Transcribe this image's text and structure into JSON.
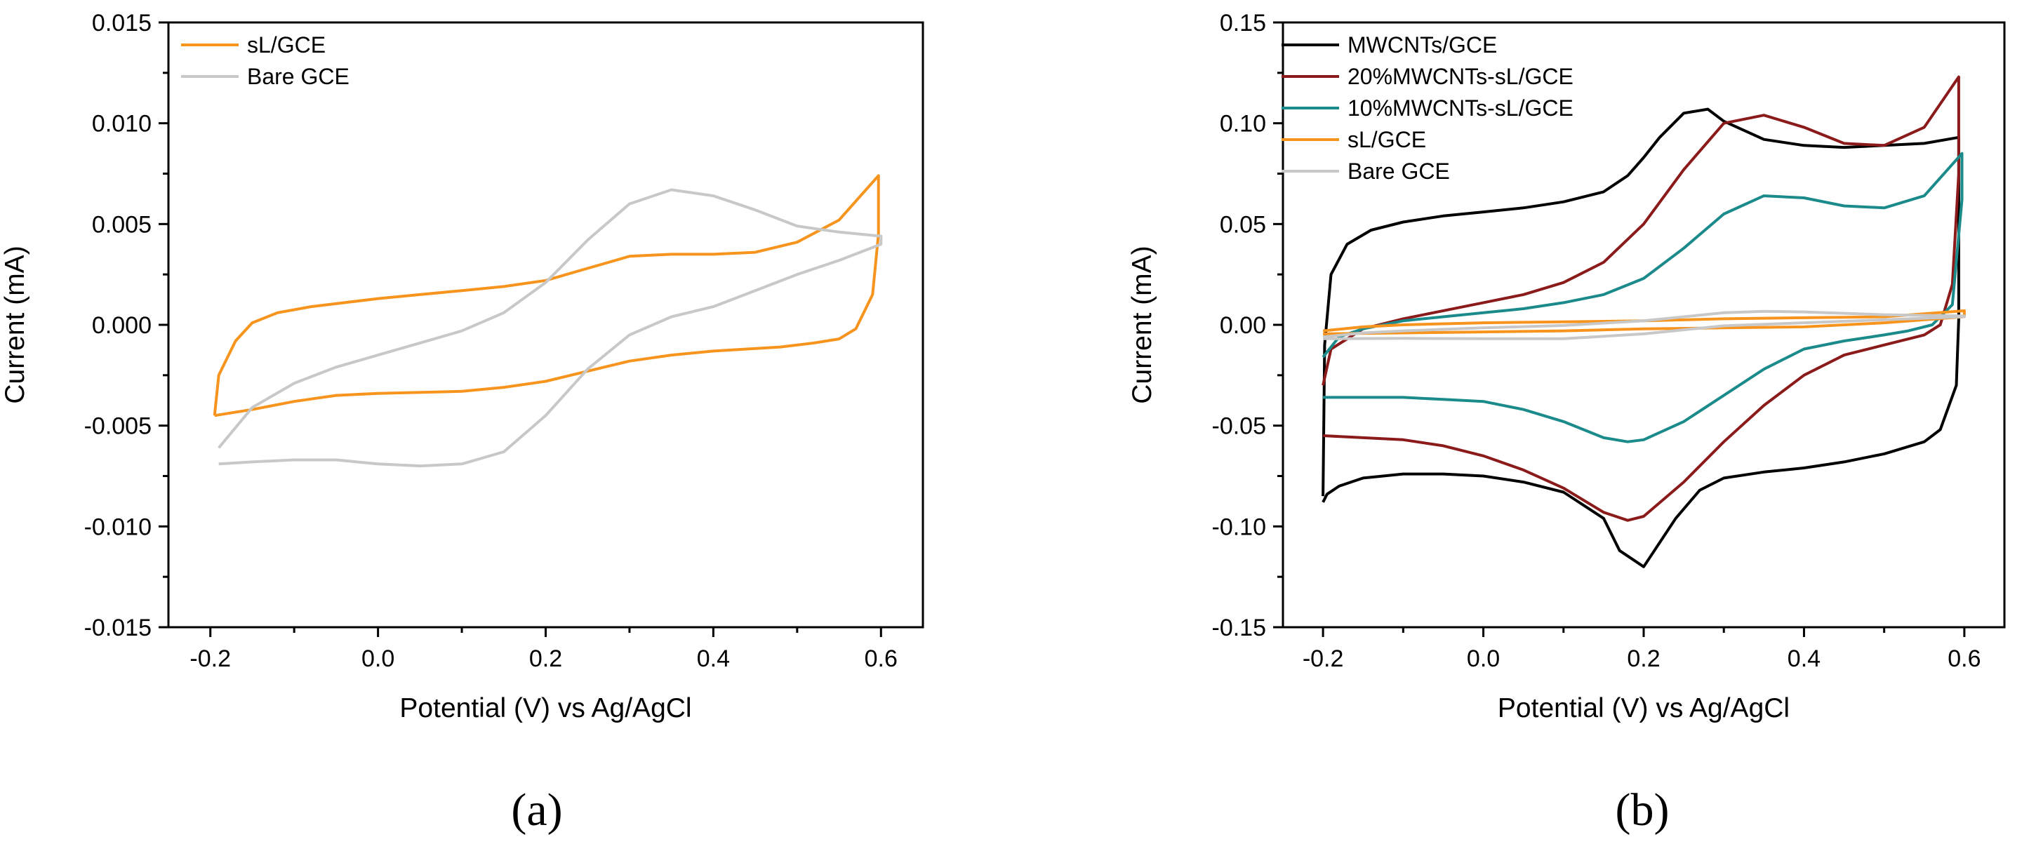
{
  "figure": {
    "panel_labels": [
      "(a)",
      "(b)"
    ]
  },
  "chart_data": [
    {
      "type": "line",
      "panel": "(a)",
      "title": "",
      "xlabel": "Potential (V) vs Ag/AgCl",
      "ylabel": "Current (mA)",
      "xlim": [
        -0.25,
        0.65
      ],
      "ylim": [
        -0.015,
        0.015
      ],
      "xticks": [
        -0.2,
        0.0,
        0.2,
        0.4,
        0.6
      ],
      "xtick_labels": [
        "-0.2",
        "0.0",
        "0.2",
        "0.4",
        "0.6"
      ],
      "yticks": [
        -0.015,
        -0.01,
        -0.005,
        0.0,
        0.005,
        0.01,
        0.015
      ],
      "ytick_labels": [
        "-0.015",
        "-0.010",
        "-0.005",
        "0.000",
        "0.005",
        "0.010",
        "0.015"
      ],
      "legend_position": "top-left",
      "series": [
        {
          "name": "sL/GCE",
          "color": "#f7941d",
          "x": [
            -0.195,
            -0.19,
            -0.17,
            -0.15,
            -0.12,
            -0.08,
            -0.04,
            0.0,
            0.05,
            0.1,
            0.15,
            0.2,
            0.25,
            0.3,
            0.35,
            0.4,
            0.45,
            0.5,
            0.55,
            0.597,
            0.597,
            0.59,
            0.57,
            0.55,
            0.52,
            0.48,
            0.4,
            0.35,
            0.3,
            0.25,
            0.2,
            0.15,
            0.1,
            0.0,
            -0.05,
            -0.1,
            -0.15,
            -0.195
          ],
          "y": [
            -0.0045,
            -0.0025,
            -0.0008,
            0.0001,
            0.0006,
            0.0009,
            0.0011,
            0.0013,
            0.0015,
            0.0017,
            0.0019,
            0.0022,
            0.0028,
            0.0034,
            0.0035,
            0.0035,
            0.0036,
            0.0041,
            0.0052,
            0.0074,
            0.0045,
            0.0015,
            -0.0002,
            -0.0007,
            -0.0009,
            -0.0011,
            -0.0013,
            -0.0015,
            -0.0018,
            -0.0023,
            -0.0028,
            -0.0031,
            -0.0033,
            -0.0034,
            -0.0035,
            -0.0038,
            -0.0042,
            -0.0045
          ]
        },
        {
          "name": "Bare GCE",
          "color": "#c8c8c8",
          "x": [
            -0.19,
            -0.15,
            -0.1,
            -0.05,
            0.0,
            0.05,
            0.1,
            0.15,
            0.2,
            0.25,
            0.3,
            0.35,
            0.4,
            0.45,
            0.5,
            0.55,
            0.6,
            0.6,
            0.55,
            0.5,
            0.45,
            0.4,
            0.35,
            0.3,
            0.25,
            0.2,
            0.15,
            0.1,
            0.05,
            0.0,
            -0.05,
            -0.1,
            -0.15,
            -0.19
          ],
          "y": [
            -0.0061,
            -0.0041,
            -0.0029,
            -0.0021,
            -0.0015,
            -0.0009,
            -0.0003,
            0.0006,
            0.0021,
            0.0042,
            0.006,
            0.0067,
            0.0064,
            0.0057,
            0.0049,
            0.0046,
            0.0044,
            0.004,
            0.0032,
            0.0025,
            0.0017,
            0.0009,
            0.0004,
            -0.0005,
            -0.0022,
            -0.0045,
            -0.0063,
            -0.0069,
            -0.007,
            -0.0069,
            -0.0067,
            -0.0067,
            -0.0068,
            -0.0069
          ]
        }
      ]
    },
    {
      "type": "line",
      "panel": "(b)",
      "title": "",
      "xlabel": "Potential (V) vs Ag/AgCl",
      "ylabel": "Current (mA)",
      "xlim": [
        -0.25,
        0.65
      ],
      "ylim": [
        -0.15,
        0.15
      ],
      "xticks": [
        -0.2,
        0.0,
        0.2,
        0.4,
        0.6
      ],
      "xtick_labels": [
        "-0.2",
        "0.0",
        "0.2",
        "0.4",
        "0.6"
      ],
      "yticks": [
        -0.15,
        -0.1,
        -0.05,
        0.0,
        0.05,
        0.1,
        0.15
      ],
      "ytick_labels": [
        "-0.15",
        "-0.10",
        "-0.05",
        "0.00",
        "0.05",
        "0.10",
        "0.15"
      ],
      "legend_position": "top-left",
      "series": [
        {
          "name": "MWCNTs/GCE",
          "color": "#000000",
          "x": [
            -0.2,
            -0.198,
            -0.19,
            -0.17,
            -0.14,
            -0.1,
            -0.05,
            0.0,
            0.05,
            0.1,
            0.15,
            0.18,
            0.2,
            0.22,
            0.25,
            0.28,
            0.3,
            0.35,
            0.4,
            0.45,
            0.5,
            0.55,
            0.593,
            0.593,
            0.59,
            0.57,
            0.55,
            0.5,
            0.45,
            0.4,
            0.35,
            0.3,
            0.27,
            0.24,
            0.2,
            0.17,
            0.15,
            0.1,
            0.05,
            0.0,
            -0.05,
            -0.1,
            -0.15,
            -0.18,
            -0.195,
            -0.2
          ],
          "y": [
            -0.085,
            -0.01,
            0.025,
            0.04,
            0.047,
            0.051,
            0.054,
            0.056,
            0.058,
            0.061,
            0.066,
            0.074,
            0.083,
            0.093,
            0.105,
            0.107,
            0.101,
            0.092,
            0.089,
            0.088,
            0.089,
            0.09,
            0.093,
            0.003,
            -0.03,
            -0.052,
            -0.058,
            -0.064,
            -0.068,
            -0.071,
            -0.073,
            -0.076,
            -0.082,
            -0.096,
            -0.12,
            -0.112,
            -0.096,
            -0.083,
            -0.078,
            -0.075,
            -0.074,
            -0.074,
            -0.076,
            -0.08,
            -0.084,
            -0.088
          ]
        },
        {
          "name": "20%MWCNTs-sL/GCE",
          "color": "#8b1a1a",
          "x": [
            -0.2,
            -0.19,
            -0.15,
            -0.1,
            -0.05,
            0.0,
            0.05,
            0.1,
            0.15,
            0.2,
            0.25,
            0.3,
            0.35,
            0.4,
            0.45,
            0.5,
            0.55,
            0.593,
            0.593,
            0.585,
            0.57,
            0.55,
            0.5,
            0.45,
            0.4,
            0.35,
            0.3,
            0.25,
            0.2,
            0.18,
            0.15,
            0.1,
            0.05,
            0.0,
            -0.05,
            -0.1,
            -0.15,
            -0.2
          ],
          "y": [
            -0.03,
            -0.012,
            -0.002,
            0.003,
            0.007,
            0.011,
            0.015,
            0.021,
            0.031,
            0.05,
            0.077,
            0.1,
            0.104,
            0.098,
            0.09,
            0.089,
            0.098,
            0.123,
            0.075,
            0.02,
            0.0,
            -0.005,
            -0.01,
            -0.015,
            -0.025,
            -0.04,
            -0.058,
            -0.078,
            -0.095,
            -0.097,
            -0.093,
            -0.081,
            -0.072,
            -0.065,
            -0.06,
            -0.057,
            -0.056,
            -0.055
          ]
        },
        {
          "name": "10%MWCNTs-sL/GCE",
          "color": "#1b8a8a",
          "x": [
            -0.2,
            -0.18,
            -0.15,
            -0.1,
            -0.05,
            0.0,
            0.05,
            0.1,
            0.15,
            0.2,
            0.25,
            0.3,
            0.35,
            0.4,
            0.45,
            0.5,
            0.55,
            0.597,
            0.597,
            0.585,
            0.56,
            0.53,
            0.5,
            0.45,
            0.4,
            0.35,
            0.3,
            0.25,
            0.2,
            0.18,
            0.15,
            0.1,
            0.05,
            0.0,
            -0.05,
            -0.1,
            -0.15,
            -0.2
          ],
          "y": [
            -0.016,
            -0.006,
            -0.002,
            0.002,
            0.004,
            0.006,
            0.008,
            0.011,
            0.015,
            0.023,
            0.038,
            0.055,
            0.064,
            0.063,
            0.059,
            0.058,
            0.064,
            0.085,
            0.062,
            0.01,
            0.0,
            -0.003,
            -0.005,
            -0.008,
            -0.012,
            -0.022,
            -0.035,
            -0.048,
            -0.057,
            -0.058,
            -0.056,
            -0.048,
            -0.042,
            -0.038,
            -0.037,
            -0.036,
            -0.036,
            -0.036
          ]
        },
        {
          "name": "sL/GCE",
          "color": "#f7941d",
          "x": [
            -0.2,
            -0.15,
            -0.1,
            0.0,
            0.1,
            0.2,
            0.3,
            0.4,
            0.5,
            0.6,
            0.6,
            0.5,
            0.4,
            0.3,
            0.2,
            0.1,
            0.0,
            -0.1,
            -0.2
          ],
          "y": [
            -0.003,
            -0.001,
            0.0,
            0.001,
            0.0015,
            0.002,
            0.003,
            0.0035,
            0.004,
            0.007,
            0.004,
            0.001,
            -0.001,
            -0.0015,
            -0.002,
            -0.003,
            -0.0035,
            -0.004,
            -0.0045
          ]
        },
        {
          "name": "Bare GCE",
          "color": "#c8c8c8",
          "x": [
            -0.2,
            -0.15,
            -0.1,
            0.0,
            0.1,
            0.2,
            0.3,
            0.35,
            0.4,
            0.5,
            0.6,
            0.6,
            0.5,
            0.4,
            0.3,
            0.2,
            0.1,
            0.0,
            -0.1,
            -0.2
          ],
          "y": [
            -0.006,
            -0.004,
            -0.003,
            -0.0015,
            -0.0003,
            0.002,
            0.006,
            0.0067,
            0.0064,
            0.005,
            0.0044,
            0.004,
            0.0025,
            0.001,
            -0.0005,
            -0.0045,
            -0.0069,
            -0.0069,
            -0.0067,
            -0.0069
          ]
        }
      ]
    }
  ]
}
